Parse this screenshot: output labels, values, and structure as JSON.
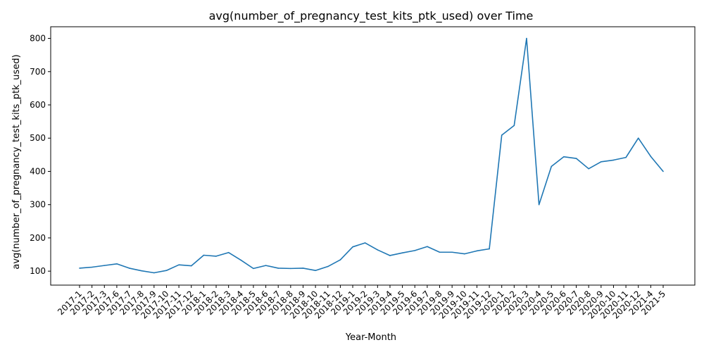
{
  "chart_data": {
    "type": "line",
    "title": "avg(number_of_pregnancy_test_kits_ptk_used) over Time",
    "xlabel": "Year-Month",
    "ylabel": "avg(number_of_pregnancy_test_kits_ptk_used)",
    "ylim": [
      58,
      835
    ],
    "yticks": [
      100,
      200,
      300,
      400,
      500,
      600,
      700,
      800
    ],
    "grid": false,
    "line_color": "#1f77b4",
    "categories": [
      "2017-1",
      "2017-2",
      "2017-3",
      "2017-6",
      "2017-7",
      "2017-8",
      "2017-9",
      "2017-10",
      "2017-11",
      "2017-12",
      "2018-1",
      "2018-2",
      "2018-3",
      "2018-4",
      "2018-5",
      "2018-6",
      "2018-7",
      "2018-8",
      "2018-9",
      "2018-10",
      "2018-11",
      "2018-12",
      "2019-1",
      "2019-2",
      "2019-3",
      "2019-4",
      "2019-5",
      "2019-6",
      "2019-7",
      "2019-8",
      "2019-9",
      "2019-10",
      "2019-11",
      "2019-12",
      "2020-1",
      "2020-2",
      "2020-3",
      "2020-4",
      "2020-5",
      "2020-6",
      "2020-7",
      "2020-8",
      "2020-9",
      "2020-10",
      "2020-11",
      "2020-12",
      "2021-4",
      "2021-5"
    ],
    "values": [
      109,
      112,
      117,
      122,
      109,
      101,
      95,
      102,
      119,
      116,
      148,
      145,
      156,
      133,
      108,
      117,
      109,
      108,
      109,
      102,
      114,
      134,
      173,
      185,
      164,
      147,
      155,
      162,
      174,
      157,
      157,
      152,
      161,
      167,
      509,
      538,
      800,
      300,
      415,
      444,
      439,
      408,
      429,
      434,
      442,
      500,
      445,
      400
    ]
  }
}
